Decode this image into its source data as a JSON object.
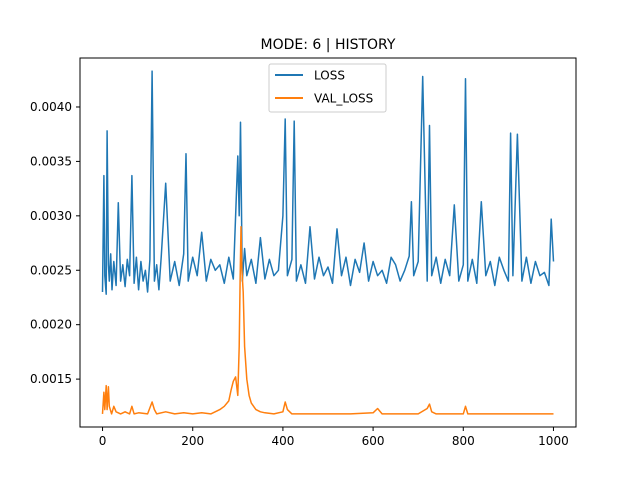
{
  "chart_data": {
    "type": "line",
    "title": "MODE: 6 | HISTORY",
    "xlabel": "",
    "ylabel": "",
    "xlim": [
      -50,
      1050
    ],
    "ylim": [
      0.00106,
      0.00445
    ],
    "x_ticks": [
      0,
      200,
      400,
      600,
      800,
      1000
    ],
    "y_ticks": [
      0.0015,
      0.002,
      0.0025,
      0.003,
      0.0035,
      0.004
    ],
    "y_tick_labels": [
      "0.0015",
      "0.0020",
      "0.0025",
      "0.0030",
      "0.0035",
      "0.0040"
    ],
    "grid": false,
    "legend_position": "top-center",
    "series": [
      {
        "name": "LOSS",
        "color": "#1f77b4",
        "x": [
          0,
          3,
          5,
          8,
          10,
          13,
          15,
          18,
          21,
          25,
          30,
          35,
          40,
          45,
          50,
          55,
          60,
          65,
          70,
          75,
          80,
          85,
          90,
          95,
          100,
          105,
          110,
          115,
          120,
          125,
          130,
          140,
          150,
          160,
          170,
          180,
          185,
          190,
          200,
          210,
          220,
          230,
          240,
          250,
          260,
          270,
          280,
          290,
          300,
          303,
          306,
          310,
          315,
          320,
          330,
          340,
          350,
          360,
          370,
          380,
          390,
          400,
          405,
          410,
          420,
          425,
          430,
          440,
          450,
          460,
          470,
          480,
          490,
          500,
          510,
          520,
          530,
          540,
          550,
          560,
          570,
          580,
          590,
          600,
          610,
          620,
          630,
          640,
          650,
          660,
          670,
          680,
          685,
          690,
          700,
          710,
          720,
          725,
          730,
          740,
          750,
          760,
          770,
          780,
          790,
          800,
          805,
          810,
          820,
          830,
          840,
          850,
          860,
          870,
          880,
          890,
          900,
          905,
          910,
          920,
          930,
          940,
          950,
          960,
          970,
          980,
          990,
          995,
          1000
        ],
        "values": [
          0.0023,
          0.00337,
          0.00245,
          0.00228,
          0.00378,
          0.00255,
          0.0024,
          0.00265,
          0.00232,
          0.00258,
          0.00236,
          0.00312,
          0.0024,
          0.00255,
          0.00235,
          0.0026,
          0.00245,
          0.00337,
          0.00238,
          0.00262,
          0.00232,
          0.00258,
          0.0024,
          0.0025,
          0.0023,
          0.0026,
          0.00433,
          0.0024,
          0.00255,
          0.00232,
          0.00262,
          0.0033,
          0.0024,
          0.00258,
          0.00236,
          0.00265,
          0.00357,
          0.0024,
          0.00262,
          0.00245,
          0.00285,
          0.0024,
          0.0026,
          0.0025,
          0.00255,
          0.00238,
          0.00262,
          0.00242,
          0.00355,
          0.003,
          0.00386,
          0.0024,
          0.0027,
          0.00245,
          0.0026,
          0.00238,
          0.0028,
          0.00242,
          0.0026,
          0.00245,
          0.0025,
          0.003,
          0.00389,
          0.00245,
          0.0026,
          0.00387,
          0.0024,
          0.00255,
          0.00238,
          0.0029,
          0.00242,
          0.00262,
          0.00245,
          0.00253,
          0.00238,
          0.00288,
          0.00245,
          0.00262,
          0.00236,
          0.0026,
          0.00248,
          0.00275,
          0.0024,
          0.00258,
          0.00245,
          0.0025,
          0.00238,
          0.00262,
          0.00255,
          0.0024,
          0.0025,
          0.00263,
          0.00313,
          0.00245,
          0.00258,
          0.00428,
          0.0024,
          0.00383,
          0.00245,
          0.00262,
          0.00238,
          0.0026,
          0.00245,
          0.0031,
          0.0024,
          0.00255,
          0.00426,
          0.0024,
          0.0026,
          0.00238,
          0.00313,
          0.00245,
          0.00258,
          0.00236,
          0.00262,
          0.0025,
          0.0024,
          0.00376,
          0.00245,
          0.00375,
          0.0024,
          0.00262,
          0.00238,
          0.00258,
          0.00245,
          0.00248,
          0.00236,
          0.00297,
          0.00258
        ]
      },
      {
        "name": "VAL_LOSS",
        "color": "#ff7f0e",
        "x": [
          0,
          3,
          5,
          8,
          10,
          13,
          15,
          20,
          25,
          30,
          40,
          50,
          60,
          65,
          70,
          80,
          100,
          110,
          115,
          120,
          140,
          160,
          180,
          200,
          220,
          240,
          260,
          270,
          280,
          285,
          290,
          295,
          300,
          303,
          305,
          307,
          309,
          312,
          315,
          320,
          325,
          330,
          340,
          350,
          360,
          380,
          400,
          405,
          410,
          420,
          450,
          500,
          550,
          600,
          610,
          620,
          650,
          700,
          720,
          725,
          730,
          740,
          800,
          805,
          810,
          850,
          900,
          950,
          1000
        ],
        "values": [
          0.00118,
          0.00138,
          0.00122,
          0.00144,
          0.00122,
          0.00143,
          0.00125,
          0.00118,
          0.00125,
          0.0012,
          0.00118,
          0.0012,
          0.00118,
          0.00125,
          0.00118,
          0.00119,
          0.00118,
          0.00129,
          0.00122,
          0.00118,
          0.0012,
          0.00118,
          0.00119,
          0.00118,
          0.00119,
          0.00118,
          0.00122,
          0.00125,
          0.0013,
          0.0014,
          0.00148,
          0.00152,
          0.00135,
          0.0018,
          0.0024,
          0.0029,
          0.0025,
          0.0023,
          0.0018,
          0.0015,
          0.00135,
          0.00128,
          0.00122,
          0.0012,
          0.00119,
          0.00118,
          0.0012,
          0.00129,
          0.00122,
          0.00118,
          0.00118,
          0.00118,
          0.00118,
          0.00119,
          0.00123,
          0.00118,
          0.00118,
          0.00118,
          0.00123,
          0.00127,
          0.0012,
          0.00118,
          0.00118,
          0.00125,
          0.00118,
          0.00118,
          0.00118,
          0.00118,
          0.00118
        ]
      }
    ]
  }
}
